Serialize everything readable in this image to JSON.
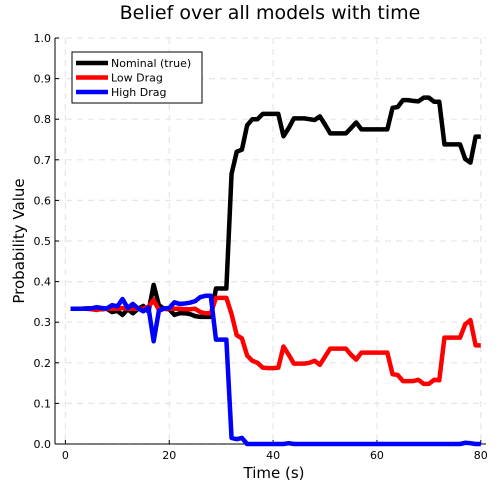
{
  "chart_data": {
    "type": "line",
    "title": "Belief over all models with time",
    "xlabel": "Time (s)",
    "ylabel": "Probability Value",
    "xlim": [
      -2,
      81
    ],
    "ylim": [
      0,
      1
    ],
    "xticks": [
      0,
      20,
      40,
      60,
      80
    ],
    "xtick_labels": [
      "0",
      "20",
      "40",
      "60",
      "80"
    ],
    "yticks": [
      0,
      0.1,
      0.2,
      0.3,
      0.4,
      0.5,
      0.6,
      0.7,
      0.8,
      0.9,
      1.0
    ],
    "ytick_labels": [
      "0.0",
      "0.1",
      "0.2",
      "0.3",
      "0.4",
      "0.5",
      "0.6",
      "0.7",
      "0.8",
      "0.9",
      "1.0"
    ],
    "grid": true,
    "legend_position": "top-left",
    "x": [
      1,
      2,
      3,
      4,
      5,
      6,
      7,
      8,
      9,
      10,
      11,
      12,
      13,
      14,
      15,
      16,
      17,
      18,
      19,
      20,
      21,
      22,
      23,
      24,
      25,
      26,
      27,
      28,
      29,
      30,
      31,
      32,
      33,
      34,
      35,
      36,
      37,
      38,
      39,
      40,
      41,
      42,
      43,
      44,
      45,
      46,
      47,
      48,
      49,
      50,
      51,
      52,
      53,
      54,
      55,
      56,
      57,
      58,
      59,
      60,
      61,
      62,
      63,
      64,
      65,
      66,
      67,
      68,
      69,
      70,
      71,
      72,
      73,
      74,
      75,
      76,
      77,
      78,
      79,
      80
    ],
    "series": [
      {
        "name": "Nominal (true)",
        "color": "#000000",
        "values": [
          0.333,
          0.333,
          0.333,
          0.334,
          0.334,
          0.333,
          0.332,
          0.333,
          0.325,
          0.328,
          0.318,
          0.332,
          0.322,
          0.333,
          0.34,
          0.326,
          0.392,
          0.342,
          0.333,
          0.332,
          0.318,
          0.322,
          0.322,
          0.32,
          0.315,
          0.313,
          0.313,
          0.313,
          0.383,
          0.383,
          0.383,
          0.665,
          0.72,
          0.725,
          0.785,
          0.8,
          0.8,
          0.813,
          0.813,
          0.813,
          0.813,
          0.758,
          0.778,
          0.802,
          0.802,
          0.802,
          0.8,
          0.798,
          0.807,
          0.787,
          0.765,
          0.765,
          0.765,
          0.765,
          0.778,
          0.792,
          0.775,
          0.775,
          0.775,
          0.775,
          0.775,
          0.775,
          0.828,
          0.83,
          0.847,
          0.847,
          0.845,
          0.844,
          0.853,
          0.853,
          0.843,
          0.843,
          0.738,
          0.738,
          0.738,
          0.738,
          0.702,
          0.693,
          0.757,
          0.757
        ]
      },
      {
        "name": "Low Drag",
        "color": "#ff0000",
        "values": [
          0.333,
          0.333,
          0.333,
          0.333,
          0.332,
          0.33,
          0.333,
          0.333,
          0.333,
          0.333,
          0.335,
          0.333,
          0.333,
          0.333,
          0.333,
          0.338,
          0.355,
          0.33,
          0.333,
          0.333,
          0.333,
          0.333,
          0.332,
          0.332,
          0.333,
          0.325,
          0.322,
          0.322,
          0.36,
          0.36,
          0.36,
          0.32,
          0.268,
          0.26,
          0.218,
          0.205,
          0.2,
          0.188,
          0.187,
          0.187,
          0.188,
          0.24,
          0.22,
          0.198,
          0.198,
          0.198,
          0.2,
          0.205,
          0.195,
          0.215,
          0.235,
          0.235,
          0.235,
          0.235,
          0.22,
          0.208,
          0.225,
          0.225,
          0.225,
          0.225,
          0.225,
          0.225,
          0.172,
          0.17,
          0.155,
          0.155,
          0.155,
          0.158,
          0.148,
          0.148,
          0.158,
          0.157,
          0.262,
          0.262,
          0.262,
          0.262,
          0.295,
          0.305,
          0.243,
          0.243
        ]
      },
      {
        "name": "High Drag",
        "color": "#0000ff",
        "values": [
          0.333,
          0.333,
          0.333,
          0.333,
          0.334,
          0.337,
          0.335,
          0.334,
          0.342,
          0.339,
          0.357,
          0.335,
          0.345,
          0.334,
          0.327,
          0.336,
          0.253,
          0.328,
          0.334,
          0.335,
          0.349,
          0.345,
          0.346,
          0.348,
          0.352,
          0.362,
          0.365,
          0.365,
          0.257,
          0.257,
          0.257,
          0.015,
          0.012,
          0.015,
          0.0,
          0.0,
          0.0,
          0.0,
          0.0,
          0.0,
          0.0,
          0.0,
          0.002,
          0.0,
          0.0,
          0.0,
          0.0,
          0.0,
          0.0,
          0.0,
          0.0,
          0.0,
          0.0,
          0.0,
          0.0,
          0.0,
          0.0,
          0.0,
          0.0,
          0.0,
          0.0,
          0.0,
          0.0,
          0.0,
          0.0,
          0.0,
          0.0,
          0.0,
          0.0,
          0.0,
          0.0,
          0.0,
          0.0,
          0.0,
          0.0,
          0.0,
          0.003,
          0.002,
          0.0,
          0.0
        ]
      }
    ]
  }
}
